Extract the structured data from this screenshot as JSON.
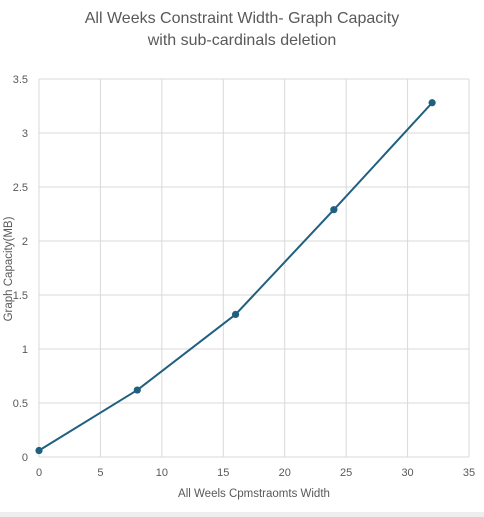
{
  "chart_data": {
    "type": "line",
    "title_line1": "All Weeks Constraint Width- Graph Capacity",
    "title_line2": "with sub-cardinals deletion",
    "xlabel": "All Weels Cpmstraomts Width",
    "ylabel": "Graph Capacity(MB)",
    "xlim": [
      0,
      35
    ],
    "ylim": [
      0,
      3.5
    ],
    "xticks": [
      0,
      5,
      10,
      15,
      20,
      25,
      30,
      35
    ],
    "yticks": [
      0,
      0.5,
      1,
      1.5,
      2,
      2.5,
      3,
      3.5
    ],
    "xtick_labels": [
      "0",
      "5",
      "10",
      "15",
      "20",
      "25",
      "30",
      "35"
    ],
    "ytick_labels": [
      "0",
      "0.5",
      "1",
      "1.5",
      "2",
      "2.5",
      "3",
      "3.5"
    ],
    "grid": true,
    "legend": "none",
    "series": [
      {
        "x": [
          0,
          8,
          16,
          24,
          32
        ],
        "y": [
          0.06,
          0.62,
          1.32,
          2.29,
          3.28
        ],
        "color": "#1f5f7f"
      }
    ]
  }
}
